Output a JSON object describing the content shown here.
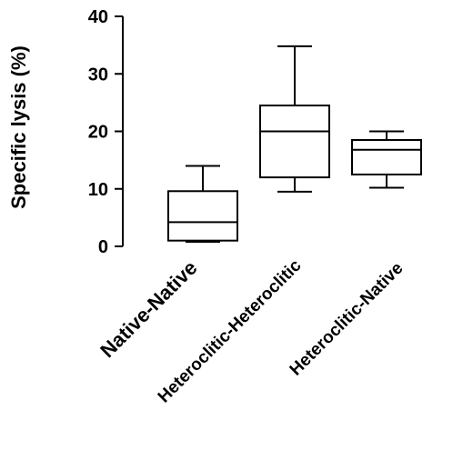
{
  "chart_data": {
    "type": "box",
    "ylabel": "Specific lysis (%)",
    "ylim": [
      0,
      40
    ],
    "yticks": [
      0,
      10,
      20,
      30,
      40
    ],
    "grid": false,
    "categories": [
      "Native-Native",
      "Heteroclitic-Heteroclitic",
      "Heteroclitic-Native"
    ],
    "boxes": [
      {
        "category": "Native-Native",
        "min": 0.8,
        "q1": 1.0,
        "median": 4.2,
        "q3": 9.6,
        "max": 14.0
      },
      {
        "category": "Heteroclitic-Heteroclitic",
        "min": 9.5,
        "q1": 12.0,
        "median": 20.0,
        "q3": 24.5,
        "max": 34.8
      },
      {
        "category": "Heteroclitic-Native",
        "min": 10.2,
        "q1": 12.5,
        "median": 16.8,
        "q3": 18.5,
        "max": 20.0
      }
    ]
  }
}
